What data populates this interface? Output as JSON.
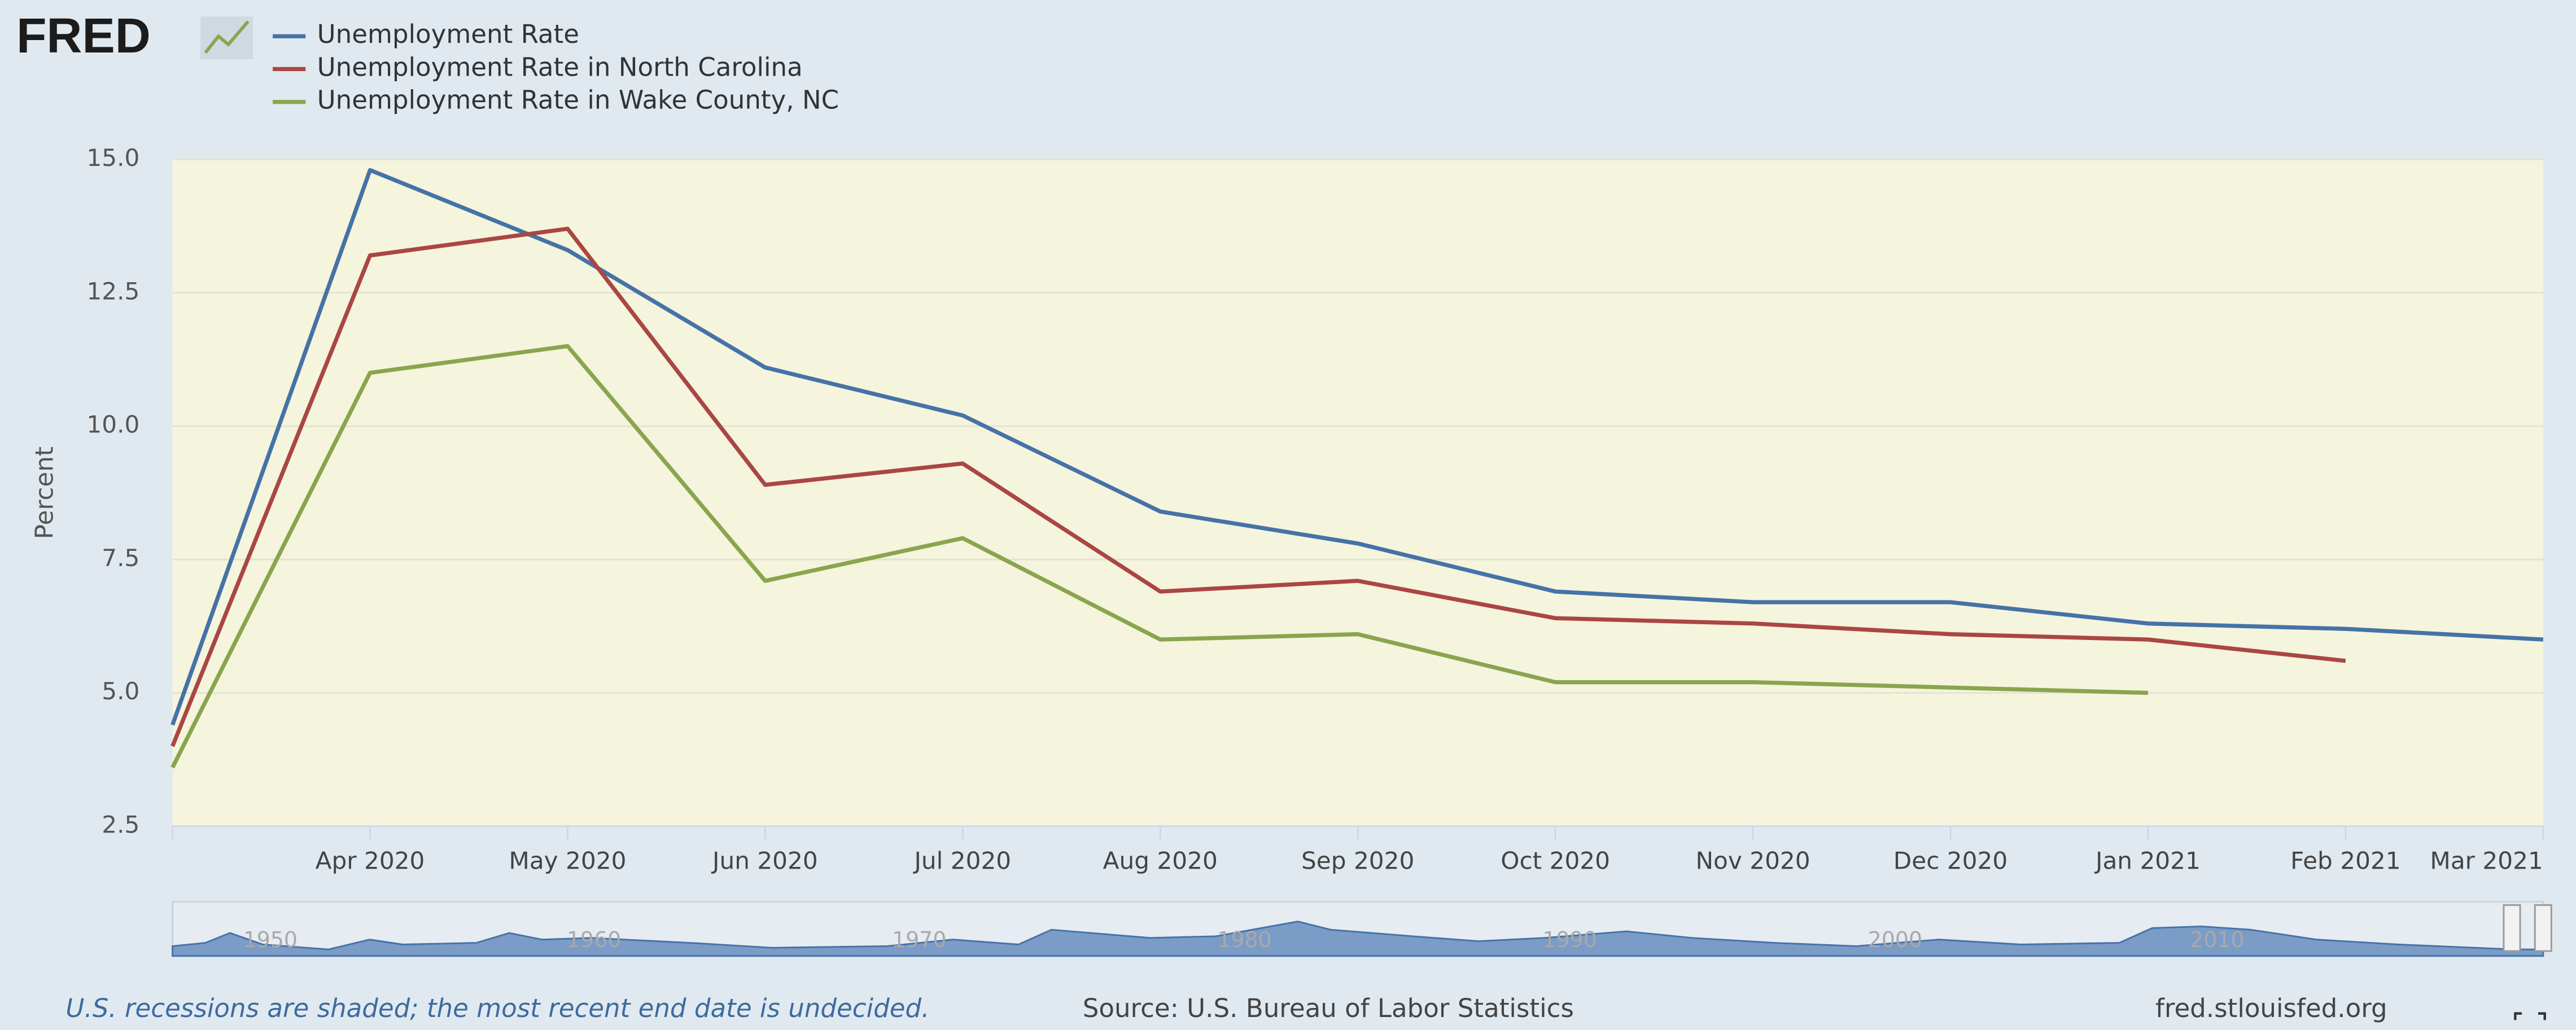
{
  "logo": "FRED",
  "chart_data": {
    "type": "line",
    "x": [
      null,
      "Apr 2020",
      "May 2020",
      "Jun 2020",
      "Jul 2020",
      "Aug 2020",
      "Sep 2020",
      "Oct 2020",
      "Nov 2020",
      "Dec 2020",
      "Jan 2021",
      "Feb 2021",
      "Mar 2021"
    ],
    "series": [
      {
        "name": "Unemployment Rate",
        "color": "#4572a7",
        "values": [
          4.4,
          14.8,
          13.3,
          11.1,
          10.2,
          8.4,
          7.8,
          6.9,
          6.7,
          6.7,
          6.3,
          6.2,
          6.0
        ]
      },
      {
        "name": "Unemployment Rate in North Carolina",
        "color": "#aa4643",
        "values": [
          4.0,
          13.2,
          13.7,
          8.9,
          9.3,
          6.9,
          7.1,
          6.4,
          6.3,
          6.1,
          6.0,
          5.6,
          null
        ]
      },
      {
        "name": "Unemployment Rate in Wake County, NC",
        "color": "#89a54e",
        "values": [
          3.6,
          11.0,
          11.5,
          7.1,
          7.9,
          6.0,
          6.1,
          5.2,
          5.2,
          5.1,
          5.0,
          null,
          null
        ]
      }
    ],
    "y_label": "Percent",
    "ylim": [
      2.5,
      15
    ],
    "yticks": [
      2.5,
      {
        "value": 5,
        "label": "5.0"
      },
      7.5,
      {
        "value": 10,
        "label": "10.0"
      },
      12.5,
      {
        "value": 15,
        "label": "15.0"
      }
    ],
    "grid": true,
    "navigator_labels": [
      "1950",
      "1960",
      "1970",
      "1980",
      "1990",
      "2000",
      "2010"
    ]
  },
  "footer": {
    "note": "U.S. recessions are shaded; the most recent end date is undecided.",
    "source": "Source: U.S. Bureau of Labor Statistics",
    "site": "fred.stlouisfed.org"
  }
}
